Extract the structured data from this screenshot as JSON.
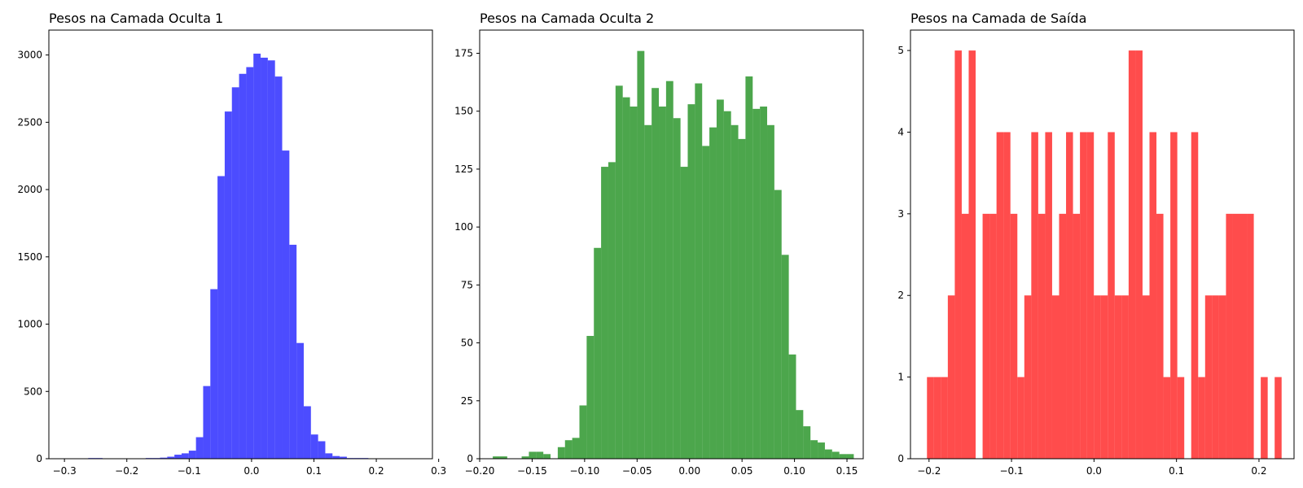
{
  "chart_data": [
    {
      "type": "bar",
      "title": "Pesos na Camada Oculta 1",
      "color": "#0000ff",
      "opacity": 0.7,
      "xlim": [
        -0.325,
        0.29
      ],
      "ylim": [
        0,
        3185
      ],
      "xticks": [
        -0.3,
        -0.2,
        -0.1,
        0.0,
        0.1,
        0.2,
        0.3
      ],
      "xtick_labels": [
        "−0.3",
        "−0.2",
        "−0.1",
        "0.0",
        "0.1",
        "0.2",
        "0.3"
      ],
      "yticks": [
        0,
        500,
        1000,
        1500,
        2000,
        2500,
        3000
      ],
      "ytick_labels": [
        "0",
        "500",
        "1000",
        "1500",
        "2000",
        "2500",
        "3000"
      ],
      "bin_start": -0.2965,
      "bin_width": 0.01152,
      "values": [
        1,
        0,
        0,
        5,
        5,
        0,
        0,
        0,
        0,
        0,
        3,
        5,
        5,
        8,
        15,
        30,
        40,
        60,
        160,
        540,
        1260,
        2100,
        2580,
        2760,
        2860,
        2910,
        3010,
        2980,
        2960,
        2840,
        2290,
        1590,
        860,
        390,
        180,
        130,
        40,
        20,
        15,
        5,
        5,
        5,
        2,
        1,
        1,
        0,
        0,
        0,
        0,
        1
      ]
    },
    {
      "type": "bar",
      "title": "Pesos na Camada Oculta 2",
      "color": "#008000",
      "opacity": 0.7,
      "xlim": [
        -0.2,
        0.1655
      ],
      "ylim": [
        0,
        185
      ],
      "xticks": [
        -0.2,
        -0.15,
        -0.1,
        -0.05,
        0.0,
        0.05,
        0.1,
        0.15
      ],
      "xtick_labels": [
        "−0.20",
        "−0.15",
        "−0.10",
        "−0.05",
        "0.00",
        "0.05",
        "0.10",
        "0.15"
      ],
      "yticks": [
        0,
        25,
        50,
        75,
        100,
        125,
        150,
        175
      ],
      "ytick_labels": [
        "0",
        "25",
        "50",
        "75",
        "100",
        "125",
        "150",
        "175"
      ],
      "bin_start": -0.1875,
      "bin_width": 0.00688,
      "values": [
        1,
        1,
        0,
        0,
        1,
        3,
        3,
        2,
        0,
        5,
        8,
        9,
        23,
        53,
        91,
        126,
        128,
        161,
        156,
        152,
        176,
        144,
        160,
        152,
        163,
        147,
        126,
        153,
        162,
        135,
        143,
        155,
        150,
        144,
        138,
        165,
        151,
        152,
        144,
        116,
        88,
        45,
        21,
        14,
        8,
        7,
        4,
        3,
        2,
        2
      ]
    },
    {
      "type": "bar",
      "title": "Pesos na Camada de Saída",
      "color": "#ff0000",
      "opacity": 0.7,
      "xlim": [
        -0.2225,
        0.2425
      ],
      "ylim": [
        0,
        5.25
      ],
      "xticks": [
        -0.2,
        -0.1,
        0.0,
        0.1,
        0.2
      ],
      "xtick_labels": [
        "−0.2",
        "−0.1",
        "0.0",
        "0.1",
        "0.2"
      ],
      "yticks": [
        0,
        1,
        2,
        3,
        4,
        5
      ],
      "ytick_labels": [
        "0",
        "1",
        "2",
        "3",
        "4",
        "5"
      ],
      "bin_start": -0.2025,
      "bin_width": 0.00843,
      "values": [
        1,
        1,
        1,
        2,
        5,
        3,
        5,
        0,
        3,
        3,
        4,
        4,
        3,
        1,
        2,
        4,
        3,
        4,
        2,
        3,
        4,
        3,
        4,
        4,
        2,
        2,
        4,
        2,
        2,
        5,
        5,
        2,
        4,
        3,
        1,
        4,
        1,
        0,
        4,
        1,
        2,
        2,
        2,
        3,
        3,
        3,
        3,
        0,
        1,
        0,
        1
      ]
    }
  ]
}
